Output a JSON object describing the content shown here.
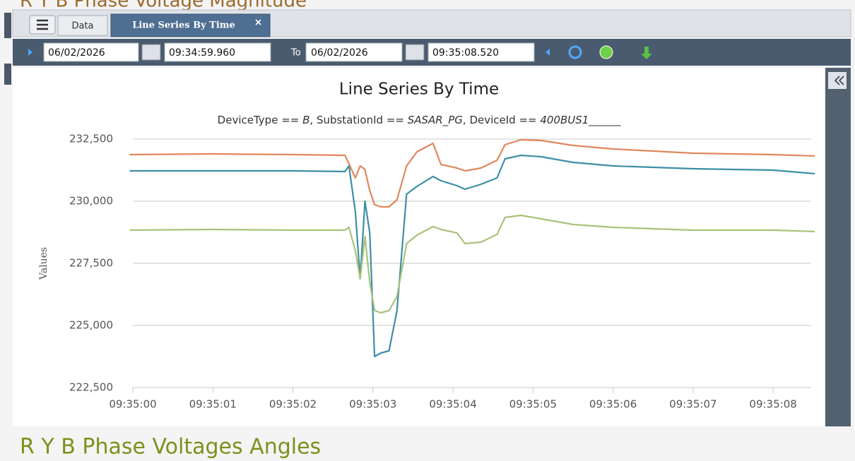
{
  "ui": {
    "top_title": "R Y B Phase Voltage Magnitude",
    "tabs": [
      "Data",
      "Line Series By Time"
    ],
    "toolbar": {
      "from_date": "06/02/2026",
      "from_time": "09:34:59.960",
      "to_label": "To",
      "to_date": "06/02/2026",
      "to_time": "09:35:08.520"
    },
    "next_section_title": "R Y B Phase Voltages Angles"
  },
  "chart_data": {
    "type": "line",
    "title": "Line Series By Time",
    "subtitle_parts": [
      "DeviceType == ",
      "B",
      ", SubstationId == ",
      "SASAR_PG",
      ", DeviceId == ",
      "400BUS1______"
    ],
    "ylabel": "Values",
    "x": [
      "09:34:59.960",
      "09:35:01.000",
      "09:35:02.000",
      "09:35:02.650",
      "09:35:02.700",
      "09:35:02.780",
      "09:35:02.840",
      "09:35:02.900",
      "09:35:02.960",
      "09:35:03.020",
      "09:35:03.100",
      "09:35:03.200",
      "09:35:03.300",
      "09:35:03.420",
      "09:35:03.550",
      "09:35:03.750",
      "09:35:03.850",
      "09:35:04.050",
      "09:35:04.150",
      "09:35:04.350",
      "09:35:04.550",
      "09:35:04.650",
      "09:35:04.850",
      "09:35:05.100",
      "09:35:05.500",
      "09:35:06.000",
      "09:35:07.000",
      "09:35:08.000",
      "09:35:08.520"
    ],
    "series": [
      {
        "color": "#e0875c",
        "values": [
          231875,
          231903,
          231875,
          231847,
          231506,
          230938,
          231420,
          231278,
          230426,
          229858,
          229773,
          229773,
          230057,
          231420,
          231989,
          232330,
          231477,
          231335,
          231222,
          231335,
          231648,
          232273,
          232472,
          232443,
          232244,
          232102,
          231932,
          231875,
          231818
        ]
      },
      {
        "color": "#3e8ea6",
        "values": [
          231222,
          231222,
          231222,
          231193,
          231420,
          229574,
          226875,
          230000,
          228722,
          223750,
          223892,
          223977,
          225596,
          230284,
          230597,
          230994,
          230824,
          230625,
          230483,
          230682,
          230937,
          231705,
          231847,
          231790,
          231562,
          231420,
          231307,
          231250,
          231108
        ]
      },
      {
        "color": "#a8c27a",
        "values": [
          228835,
          228864,
          228835,
          228835,
          228949,
          228011,
          226875,
          228579,
          226733,
          225596,
          225511,
          225596,
          226165,
          228295,
          228636,
          228977,
          228864,
          228722,
          228295,
          228352,
          228665,
          229347,
          229432,
          229290,
          229062,
          228949,
          228835,
          228835,
          228778
        ]
      }
    ],
    "xlim": [
      "09:34:59.960",
      "09:35:08.520"
    ],
    "xticks": [
      "09:35:00",
      "09:35:01",
      "09:35:02",
      "09:35:03",
      "09:35:04",
      "09:35:05",
      "09:35:06",
      "09:35:07",
      "09:35:08"
    ],
    "ylim": [
      222500,
      232500
    ],
    "yticks": [
      {
        "value": 222500,
        "label": "222,500"
      },
      {
        "value": 225000,
        "label": "225,000"
      },
      {
        "value": 227500,
        "label": "227,500"
      },
      {
        "value": 230000,
        "label": "230,000"
      },
      {
        "value": 232500,
        "label": "232,500"
      }
    ],
    "grid": true
  }
}
